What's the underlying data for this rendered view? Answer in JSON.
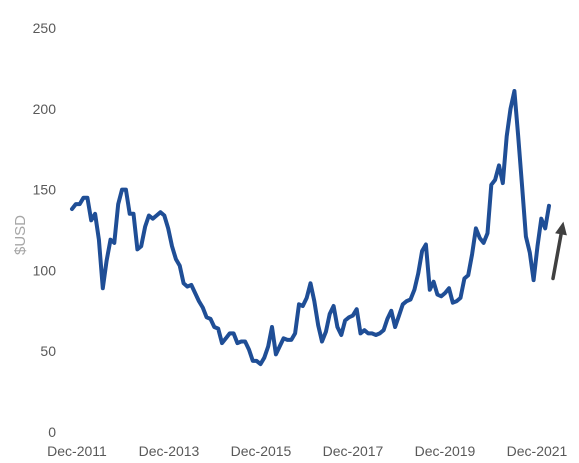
{
  "chart_data": {
    "type": "line",
    "ylabel": "$USD",
    "xlabel": "",
    "ylim": [
      0,
      250
    ],
    "yticks": [
      "0",
      "50",
      "100",
      "150",
      "200",
      "250"
    ],
    "xticks": [
      "Dec-2011",
      "Dec-2013",
      "Dec-2015",
      "Dec-2017",
      "Dec-2019",
      "Dec-2021"
    ],
    "grid": false,
    "series": [
      {
        "color": "#1f4e96",
        "values": [
          138,
          141,
          141,
          145,
          145,
          131,
          135,
          119,
          89,
          106,
          119,
          117,
          141,
          150,
          150,
          135,
          135,
          113,
          115,
          127,
          134,
          132,
          134,
          136,
          134,
          126,
          115,
          107,
          103,
          92,
          90,
          91,
          86,
          81,
          77,
          71,
          70,
          65,
          64,
          55,
          58,
          61,
          61,
          55,
          56,
          56,
          51,
          44,
          44,
          42,
          46,
          53,
          65,
          48,
          53,
          58,
          57,
          57,
          61,
          79,
          78,
          83,
          92,
          81,
          66,
          56,
          62,
          73,
          78,
          65,
          60,
          69,
          71,
          72,
          76,
          61,
          63,
          61,
          61,
          60,
          61,
          63,
          70,
          75,
          65,
          72,
          79,
          81,
          82,
          88,
          98,
          112,
          116,
          88,
          93,
          85,
          84,
          86,
          89,
          80,
          81,
          83,
          95,
          97,
          110,
          126,
          120,
          117,
          123,
          153,
          156,
          165,
          154,
          183,
          200,
          211,
          183,
          152,
          121,
          111,
          94,
          115,
          132,
          126,
          140
        ]
      }
    ],
    "annotation": {
      "type": "arrow",
      "color": "#404040",
      "from_y": 95,
      "to_y": 129
    }
  }
}
